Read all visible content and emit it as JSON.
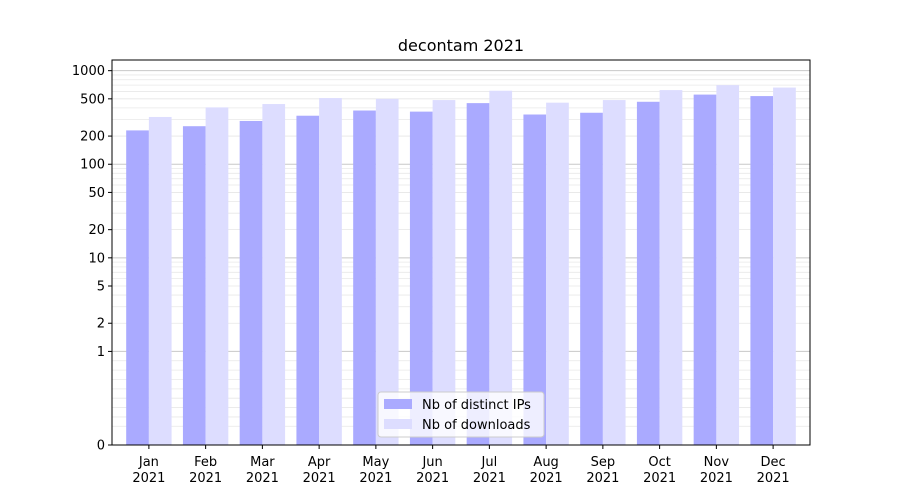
{
  "chart_data": {
    "type": "bar",
    "title": "decontam 2021",
    "xlabel": "",
    "ylabel": "",
    "y_scale": "symlog",
    "ylim": [
      0,
      1300
    ],
    "yticks": [
      0,
      1,
      2,
      5,
      10,
      20,
      50,
      100,
      200,
      500,
      1000
    ],
    "grid": "horizontal",
    "legend_position": "bottom-center",
    "categories": [
      "Jan 2021",
      "Feb 2021",
      "Mar 2021",
      "Apr 2021",
      "May 2021",
      "Jun 2021",
      "Jul 2021",
      "Aug 2021",
      "Sep 2021",
      "Oct 2021",
      "Nov 2021",
      "Dec 2021"
    ],
    "series": [
      {
        "name": "Nb of distinct IPs",
        "color": "#aaaaff",
        "values": [
          230,
          255,
          290,
          330,
          375,
          365,
          450,
          340,
          355,
          465,
          555,
          535
        ]
      },
      {
        "name": "Nb of downloads",
        "color": "#ddddff",
        "values": [
          320,
          405,
          440,
          510,
          500,
          485,
          610,
          455,
          485,
          620,
          700,
          660
        ]
      }
    ]
  }
}
